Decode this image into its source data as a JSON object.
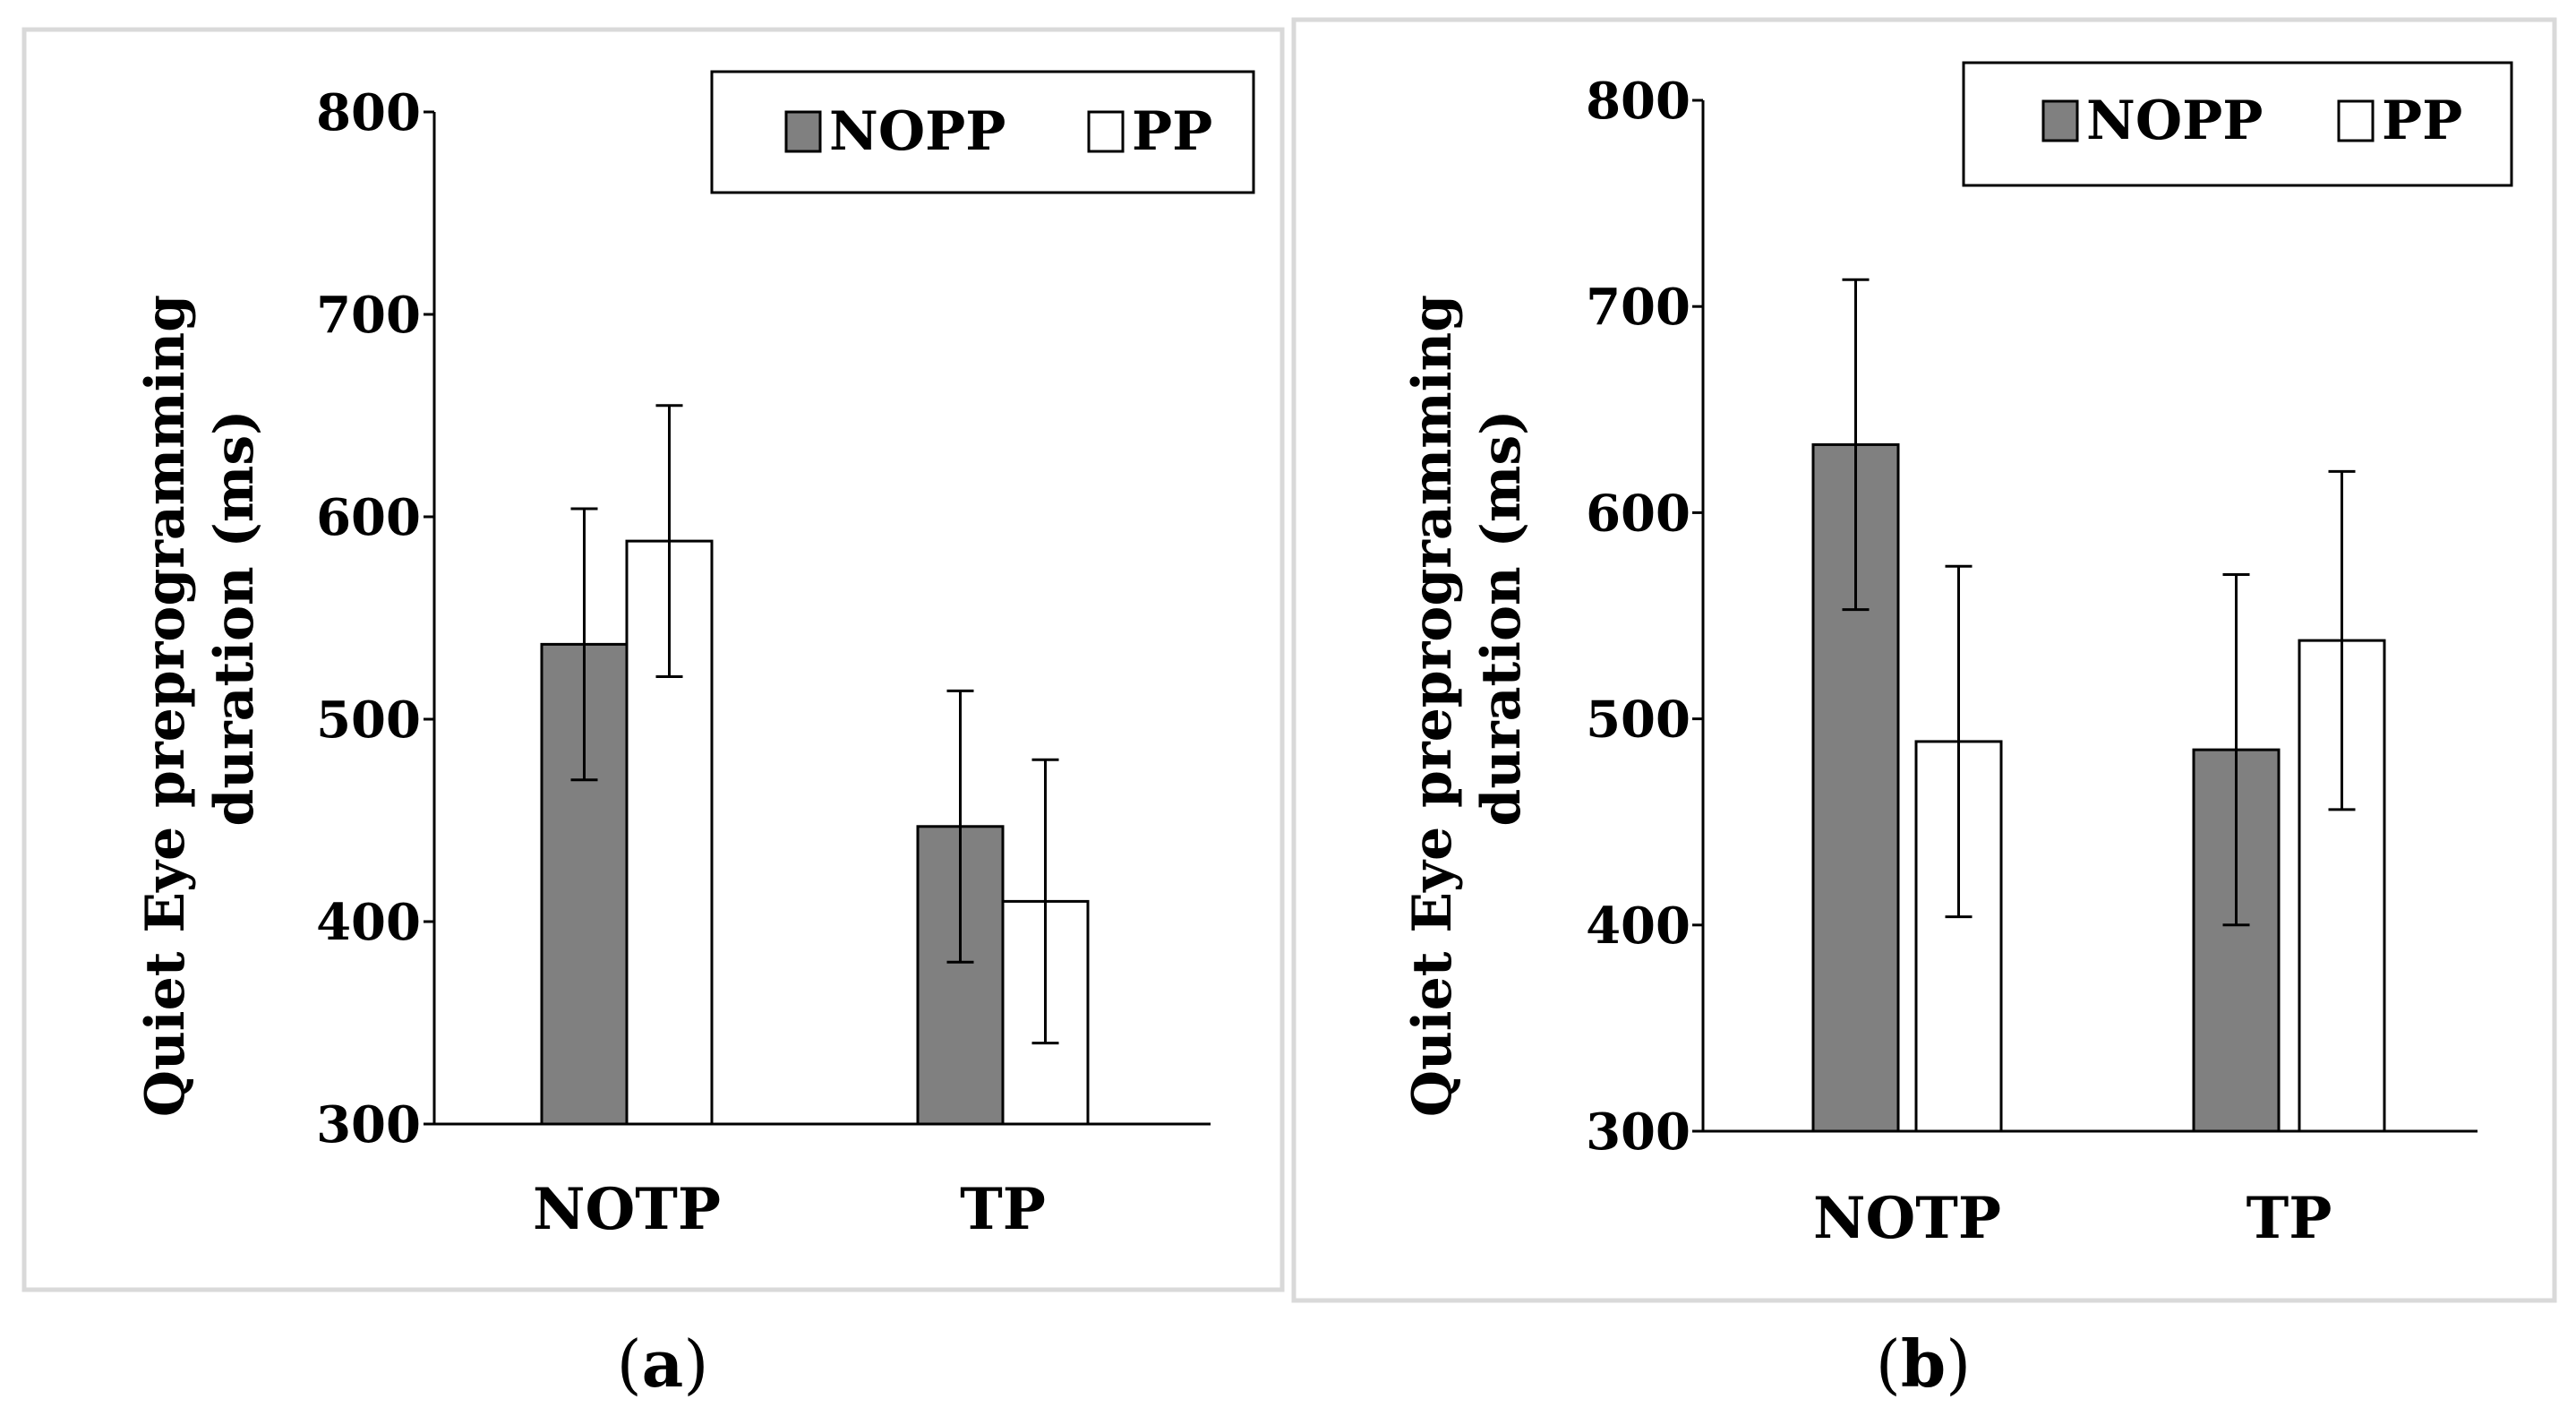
{
  "chart_data": [
    {
      "type": "bar",
      "panel_label": "a",
      "categories": [
        "NOTP",
        "TP"
      ],
      "series": [
        {
          "name": "NOPP",
          "values": [
            537,
            447
          ],
          "error": [
            67,
            67
          ],
          "color": "#808080"
        },
        {
          "name": "PP",
          "values": [
            588,
            410
          ],
          "error": [
            67,
            70
          ],
          "color": "#ffffff"
        }
      ],
      "ylabel_lines": [
        "Quiet Eye preprogramming",
        "duration (ms)"
      ],
      "ylim": [
        300,
        800
      ],
      "yticks": [
        300,
        400,
        500,
        600,
        700,
        800
      ],
      "legend_position": "top-right"
    },
    {
      "type": "bar",
      "panel_label": "b",
      "categories": [
        "NOTP",
        "TP"
      ],
      "series": [
        {
          "name": "NOPP",
          "values": [
            633,
            485
          ],
          "error": [
            80,
            85
          ],
          "color": "#808080"
        },
        {
          "name": "PP",
          "values": [
            489,
            538
          ],
          "error": [
            85,
            82
          ],
          "color": "#ffffff"
        }
      ],
      "ylabel_lines": [
        "Quiet Eye preprogramming",
        "duration (ms)"
      ],
      "ylim": [
        300,
        800
      ],
      "yticks": [
        300,
        400,
        500,
        600,
        700,
        800
      ],
      "legend_position": "top-right"
    }
  ]
}
